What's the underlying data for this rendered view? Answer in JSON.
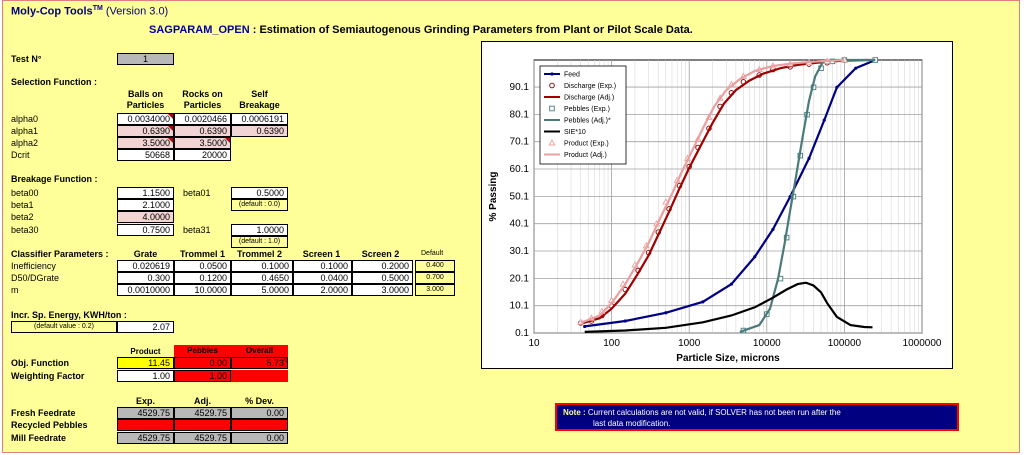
{
  "app": {
    "name": "Moly-Cop Tools",
    "tm": "TM",
    "version": "(Version 3.0)"
  },
  "header": {
    "code": "SAGPARAM_OPEN",
    "sep": " : ",
    "desc": "Estimation of Semiautogenous Grinding Parameters from Plant or Pilot Scale Data."
  },
  "test": {
    "label": "Test N°",
    "value": "1"
  },
  "selection": {
    "title": "Selection Function :",
    "col1": [
      "Balls on",
      "Particles"
    ],
    "col2": [
      "Rocks on",
      "Particles"
    ],
    "col3": [
      "Self",
      "Breakage"
    ],
    "rows": [
      {
        "label": "alpha0",
        "v1": "0.0034000",
        "v2": "0.0020466",
        "v3": "0.0006191"
      },
      {
        "label": "alpha1",
        "v1": "0.6390",
        "v2": "0.6390",
        "v3": "0.6390"
      },
      {
        "label": "alpha2",
        "v1": "3.5000",
        "v2": "3.5000",
        "v3": ""
      },
      {
        "label": "Dcrit",
        "v1": "50668",
        "v2": "20000",
        "v3": ""
      }
    ]
  },
  "breakage": {
    "title": "Breakage Function :",
    "beta00": {
      "label": "beta00",
      "value": "1.1500"
    },
    "beta01": {
      "label": "beta01",
      "value": "0.5000",
      "default": "(default : 0.0)"
    },
    "beta1": {
      "label": "beta1",
      "value": "2.1000"
    },
    "beta2": {
      "label": "beta2",
      "value": "4.0000"
    },
    "beta30": {
      "label": "beta30",
      "value": "0.7500"
    },
    "beta31": {
      "label": "beta31",
      "value": "1.0000",
      "default": "(default : 1.0)"
    }
  },
  "classifier": {
    "title": "Classifier Parameters :",
    "cols": [
      "Grate",
      "Trommel 1",
      "Trommel 2",
      "Screen 1",
      "Screen 2"
    ],
    "default_label": "Default",
    "rows": [
      {
        "label": "Inefficiency",
        "vals": [
          "0.020619",
          "0.0500",
          "0.1000",
          "0.1000",
          "0.2000"
        ],
        "default": "0.400"
      },
      {
        "label": "D50/DGrate",
        "vals": [
          "0.300",
          "0.1200",
          "0.4650",
          "0.0400",
          "0.5000"
        ],
        "default": "0.700"
      },
      {
        "label": "m",
        "vals": [
          "0.0010000",
          "10.0000",
          "5.0000",
          "2.0000",
          "3.0000"
        ],
        "default": "3.000"
      }
    ]
  },
  "energy": {
    "title": "Incr. Sp. Energy, KWH/ton :",
    "default": "(default value : 0.2)",
    "value": "2.07"
  },
  "objective": {
    "cols": [
      "Product",
      "Pebbles",
      "Overall"
    ],
    "obj_label": "Obj. Function",
    "obj_vals": [
      "11.45",
      "0.00",
      "5.73"
    ],
    "weight_label": "Weighting Factor",
    "weight_vals": [
      "1.00",
      "1.00"
    ]
  },
  "feed": {
    "cols": [
      "Exp.",
      "Adj.",
      "% Dev."
    ],
    "rows": [
      {
        "label": "Fresh Feedrate",
        "vals": [
          "4529.75",
          "4529.75",
          "0.00"
        ]
      },
      {
        "label": "Recycled Pebbles",
        "vals": [
          "",
          "",
          ""
        ]
      },
      {
        "label": "Mill Feedrate",
        "vals": [
          "4529.75",
          "4529.75",
          "0.00"
        ]
      }
    ]
  },
  "note": {
    "label": "Note :",
    "line1": "Current calculations are not valid, if SOLVER has not been run after the",
    "line2": "last data modification."
  },
  "chart_data": {
    "type": "line",
    "xlabel": "Particle Size, microns",
    "ylabel": "% Passing",
    "xscale": "log",
    "xlim": [
      10,
      1000000
    ],
    "x_ticks": [
      "10",
      "100",
      "1000",
      "10000",
      "100000",
      "1000000"
    ],
    "y_ticks": [
      "0.1",
      "10.1",
      "20.1",
      "30.1",
      "40.1",
      "50.1",
      "60.1",
      "70.1",
      "80.1",
      "90.1"
    ],
    "ylim": [
      0.1,
      100
    ],
    "grid": true,
    "legend_position": "top-left",
    "series": [
      {
        "name": "Feed",
        "style": "line",
        "color": "#000080",
        "marker": "dot",
        "points": [
          [
            45,
            2.5
          ],
          [
            150,
            4.5
          ],
          [
            500,
            7.5
          ],
          [
            1500,
            11.5
          ],
          [
            3500,
            18
          ],
          [
            7000,
            28
          ],
          [
            12000,
            38
          ],
          [
            20000,
            50
          ],
          [
            35000,
            64
          ],
          [
            55000,
            78
          ],
          [
            80000,
            90
          ],
          [
            140000,
            97
          ],
          [
            250000,
            100
          ]
        ]
      },
      {
        "name": "Discharge (Exp.)",
        "style": "markers",
        "color": "#800000",
        "marker": "circle",
        "points": [
          [
            40,
            3.8
          ],
          [
            55,
            4.5
          ],
          [
            75,
            6.5
          ],
          [
            100,
            10
          ],
          [
            150,
            16
          ],
          [
            220,
            23
          ],
          [
            300,
            29.5
          ],
          [
            400,
            37
          ],
          [
            550,
            45.5
          ],
          [
            750,
            54
          ],
          [
            1000,
            61
          ],
          [
            1300,
            68
          ],
          [
            1800,
            75
          ],
          [
            2500,
            83
          ],
          [
            3500,
            88
          ],
          [
            5000,
            92
          ],
          [
            8000,
            94.5
          ],
          [
            12000,
            96.5
          ],
          [
            20000,
            97.5
          ],
          [
            35000,
            98.5
          ],
          [
            60000,
            99
          ],
          [
            100000,
            100
          ]
        ]
      },
      {
        "name": "Discharge (Adj.)",
        "style": "line",
        "color": "#a00000",
        "marker": "none",
        "points": [
          [
            40,
            3.5
          ],
          [
            70,
            5.5
          ],
          [
            100,
            9
          ],
          [
            150,
            14.5
          ],
          [
            220,
            22
          ],
          [
            300,
            28.5
          ],
          [
            400,
            36
          ],
          [
            550,
            44.5
          ],
          [
            750,
            53
          ],
          [
            1000,
            60.5
          ],
          [
            1400,
            68.5
          ],
          [
            2000,
            77
          ],
          [
            2800,
            84
          ],
          [
            4000,
            89
          ],
          [
            6000,
            92.5
          ],
          [
            9000,
            95
          ],
          [
            15000,
            97
          ],
          [
            25000,
            98.2
          ],
          [
            45000,
            99
          ],
          [
            90000,
            99.7
          ],
          [
            200000,
            100
          ]
        ]
      },
      {
        "name": "Pebbles (Exp.)",
        "style": "markers",
        "color": "#4a7a7a",
        "marker": "square",
        "points": [
          [
            5000,
            1
          ],
          [
            10000,
            7
          ],
          [
            15000,
            20
          ],
          [
            18000,
            35
          ],
          [
            22000,
            50
          ],
          [
            27000,
            65
          ],
          [
            33000,
            80
          ],
          [
            40000,
            90
          ],
          [
            50000,
            97
          ],
          [
            70000,
            99.5
          ],
          [
            100000,
            100
          ],
          [
            250000,
            100
          ]
        ]
      },
      {
        "name": "Pebbles (Adj.)*",
        "style": "line",
        "color": "#4a7a7a",
        "marker": "none",
        "points": [
          [
            4500,
            0.5
          ],
          [
            8000,
            3
          ],
          [
            11000,
            9
          ],
          [
            14000,
            20
          ],
          [
            17000,
            33
          ],
          [
            20000,
            45
          ],
          [
            24000,
            58
          ],
          [
            29000,
            72
          ],
          [
            35000,
            85
          ],
          [
            42000,
            94
          ],
          [
            52000,
            99
          ],
          [
            70000,
            100
          ],
          [
            250000,
            100
          ]
        ]
      },
      {
        "name": "SIE*10",
        "style": "line",
        "color": "#000000",
        "marker": "none",
        "points": [
          [
            45,
            0.5
          ],
          [
            150,
            1
          ],
          [
            500,
            2
          ],
          [
            1500,
            4
          ],
          [
            3500,
            6.5
          ],
          [
            7000,
            9.5
          ],
          [
            12000,
            13
          ],
          [
            18000,
            16
          ],
          [
            25000,
            18
          ],
          [
            32000,
            18.5
          ],
          [
            40000,
            17.5
          ],
          [
            50000,
            15
          ],
          [
            60000,
            11
          ],
          [
            80000,
            6
          ],
          [
            120000,
            3
          ],
          [
            180000,
            2.3
          ],
          [
            230000,
            2.2
          ]
        ]
      },
      {
        "name": "Product (Exp.)",
        "style": "markers",
        "color": "#e8a0a0",
        "marker": "triangle",
        "points": [
          [
            40,
            4
          ],
          [
            55,
            5.5
          ],
          [
            75,
            8
          ],
          [
            100,
            12
          ],
          [
            140,
            18
          ],
          [
            200,
            25
          ],
          [
            280,
            32
          ],
          [
            380,
            40
          ],
          [
            500,
            48
          ],
          [
            700,
            56
          ],
          [
            950,
            64
          ],
          [
            1300,
            71
          ],
          [
            1800,
            79
          ],
          [
            2500,
            86
          ],
          [
            3500,
            91
          ],
          [
            5000,
            94
          ],
          [
            8000,
            96.5
          ],
          [
            12000,
            97.8
          ],
          [
            20000,
            98.5
          ],
          [
            35000,
            99
          ],
          [
            60000,
            99.5
          ],
          [
            100000,
            100
          ]
        ]
      },
      {
        "name": "Product (Adj.)",
        "style": "line",
        "color": "#e8a0a0",
        "marker": "none",
        "points": [
          [
            40,
            3.8
          ],
          [
            70,
            6.5
          ],
          [
            100,
            11
          ],
          [
            150,
            18
          ],
          [
            220,
            26
          ],
          [
            300,
            33
          ],
          [
            420,
            42
          ],
          [
            600,
            51
          ],
          [
            800,
            59
          ],
          [
            1100,
            67
          ],
          [
            1500,
            75
          ],
          [
            2100,
            83
          ],
          [
            3000,
            89
          ],
          [
            4500,
            93
          ],
          [
            7000,
            96
          ],
          [
            12000,
            97.8
          ],
          [
            22000,
            98.8
          ],
          [
            45000,
            99.5
          ],
          [
            100000,
            100
          ]
        ]
      }
    ]
  }
}
